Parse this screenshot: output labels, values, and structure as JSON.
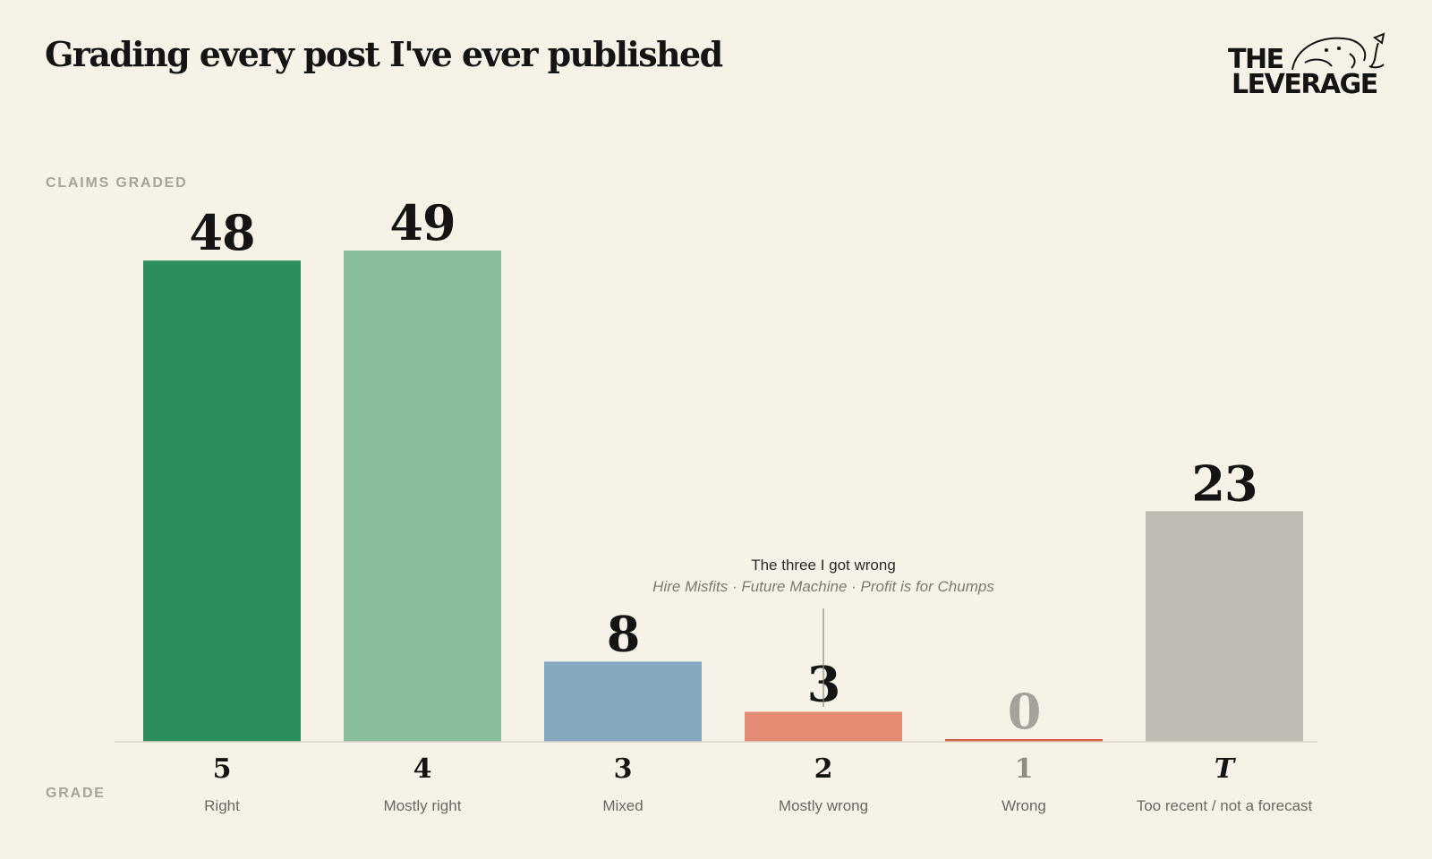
{
  "title": "Grading every post I've ever published",
  "logo": {
    "line1": "THE",
    "line2": "LEVERAGE"
  },
  "axis": {
    "ylabel": "CLAIMS GRADED",
    "xlabel": "GRADE"
  },
  "annotation": {
    "title": "The three I got wrong",
    "subtitle": "Hire Misfits · Future Machine · Profit is for Chumps",
    "target_category": "Mostly wrong"
  },
  "chart_data": {
    "type": "bar",
    "title": "Grading every post I've ever published",
    "ylabel": "CLAIMS GRADED",
    "xlabel": "GRADE",
    "ylim": [
      0,
      49
    ],
    "grid": false,
    "legend": "none",
    "categories": [
      "Right",
      "Mostly right",
      "Mixed",
      "Mostly wrong",
      "Wrong",
      "Too recent / not a forecast"
    ],
    "grades": [
      "5",
      "4",
      "3",
      "2",
      "1",
      "T"
    ],
    "values": [
      48,
      49,
      8,
      3,
      0,
      23
    ],
    "colors": [
      "#2b8e5a",
      "#88bd9b",
      "#86a8bf",
      "#e58b73",
      "#d75a3c",
      "#bfbbb3"
    ],
    "value_label_colors": [
      "#141414",
      "#141414",
      "#141414",
      "#141414",
      "#a5a29c",
      "#141414"
    ],
    "grade_label_colors": [
      "#141414",
      "#141414",
      "#141414",
      "#141414",
      "#8e8b85",
      "#141414"
    ]
  }
}
